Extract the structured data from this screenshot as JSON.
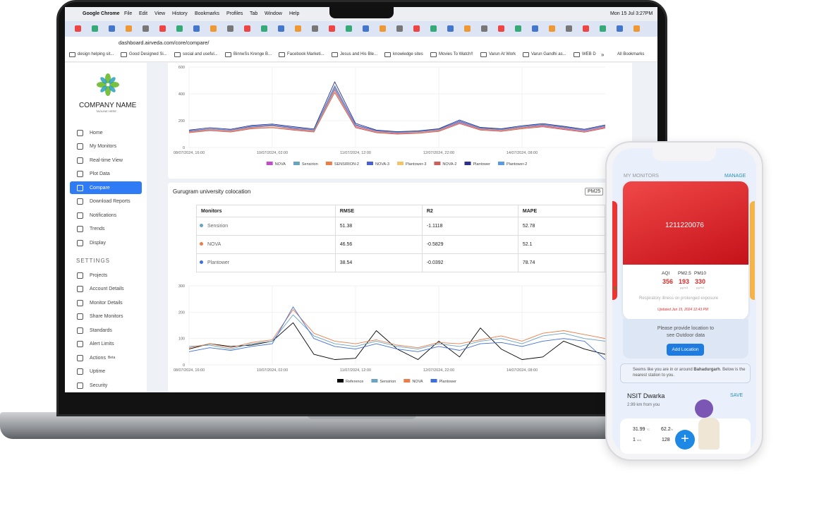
{
  "browser": {
    "app": "Google Chrome",
    "menu": [
      "File",
      "Edit",
      "View",
      "History",
      "Bookmarks",
      "Profiles",
      "Tab",
      "Window",
      "Help"
    ],
    "clock": "Mon 15 Jul 3:27PM",
    "url": "dashboard.airveda.com/core/compare/",
    "bookmarks": [
      "design helping sit...",
      "Good Designed Si...",
      "social and useful...",
      "BinneSs Krenge B...",
      "Facebook Marketi...",
      "Jesus and His Ble...",
      "knowledge sites",
      "Movies To Watch!!",
      "Varun At Work",
      "Varun Gandhi as...",
      "WEB D"
    ],
    "more": "»",
    "all_bookmarks": "All Bookmarks"
  },
  "sidebar": {
    "company": "COMPANY NAME",
    "tagline": "TAGLINE HERE",
    "nav": [
      "Home",
      "My Monitors",
      "Real-time View",
      "Plot Data",
      "Compare",
      "Download Reports",
      "Notifications",
      "Trends",
      "Display"
    ],
    "active": "Compare",
    "settings_title": "SETTINGS",
    "settings": [
      "Projects",
      "Account Details",
      "Monitor Details",
      "Share Monitors",
      "Standards",
      "Alert Limits",
      "Actions",
      "Uptime",
      "Security"
    ],
    "beta": "Beta"
  },
  "table": {
    "title": "Gurugram university colocation",
    "selector": "PM25",
    "headers": [
      "Monitors",
      "RMSE",
      "R2",
      "MAPE"
    ],
    "rows": [
      [
        "Sensirion",
        51.38,
        -1.1118,
        52.78
      ],
      [
        "NOVA",
        46.56,
        -0.5829,
        52.1
      ],
      [
        "Plantower",
        38.54,
        -0.0392,
        78.74
      ]
    ],
    "dot_colors": [
      "#6aa3c0",
      "#e97e4a",
      "#3f6fd9"
    ]
  },
  "chart_data": [
    {
      "type": "line",
      "x": [
        0,
        1,
        2,
        3,
        4,
        5,
        6,
        7,
        8,
        9,
        10,
        11,
        12,
        13,
        14,
        15,
        16,
        17,
        18,
        19,
        20
      ],
      "xlim": [
        0,
        20
      ],
      "xticks": [
        {
          "value": 0,
          "label": "08/07/2024, 16:00"
        },
        {
          "value": 4,
          "label": "10/07/2024, 02:00"
        },
        {
          "value": 8,
          "label": "11/07/2024, 12:00"
        },
        {
          "value": 12,
          "label": "12/07/2024, 22:00"
        },
        {
          "value": 16,
          "label": "14/07/2024, 08:00"
        }
      ],
      "ylim": [
        0,
        600
      ],
      "yticks": [
        0,
        200,
        400,
        600
      ],
      "grid": true,
      "series": [
        {
          "name": "NOVA",
          "color": "#c04ec9",
          "values": [
            115,
            130,
            120,
            145,
            150,
            135,
            120,
            430,
            155,
            115,
            105,
            110,
            125,
            185,
            135,
            125,
            145,
            160,
            140,
            120,
            150
          ]
        },
        {
          "name": "Sensirion",
          "color": "#6aa3c0",
          "values": [
            120,
            138,
            128,
            152,
            162,
            142,
            128,
            440,
            165,
            122,
            112,
            118,
            132,
            190,
            142,
            132,
            152,
            168,
            148,
            128,
            158
          ]
        },
        {
          "name": "SENSIRION-2",
          "color": "#e97e4a",
          "values": [
            118,
            136,
            126,
            150,
            160,
            140,
            126,
            450,
            162,
            120,
            110,
            116,
            130,
            192,
            140,
            130,
            150,
            166,
            146,
            126,
            156
          ]
        },
        {
          "name": "NOVA-3",
          "color": "#4a5fd1",
          "values": [
            125,
            140,
            130,
            158,
            168,
            148,
            132,
            460,
            170,
            126,
            115,
            120,
            136,
            198,
            146,
            136,
            156,
            172,
            152,
            130,
            162
          ]
        },
        {
          "name": "Plantower-3",
          "color": "#f2c46a",
          "values": [
            112,
            128,
            118,
            142,
            150,
            132,
            118,
            420,
            150,
            112,
            102,
            108,
            122,
            180,
            132,
            122,
            142,
            156,
            136,
            116,
            146
          ]
        },
        {
          "name": "NOVA-2",
          "color": "#c9605c",
          "values": [
            110,
            126,
            116,
            140,
            148,
            130,
            116,
            410,
            148,
            110,
            100,
            106,
            120,
            178,
            130,
            120,
            140,
            154,
            134,
            114,
            144
          ]
        },
        {
          "name": "Plantower",
          "color": "#2d2f8c",
          "values": [
            130,
            148,
            136,
            165,
            175,
            155,
            138,
            490,
            180,
            130,
            118,
            124,
            140,
            205,
            150,
            140,
            162,
            178,
            158,
            136,
            168
          ]
        },
        {
          "name": "Plantower-2",
          "color": "#5a9be0",
          "values": [
            122,
            140,
            130,
            154,
            164,
            144,
            130,
            455,
            166,
            124,
            113,
            119,
            134,
            194,
            144,
            134,
            154,
            170,
            150,
            128,
            160
          ]
        }
      ]
    },
    {
      "type": "line",
      "x": [
        0,
        1,
        2,
        3,
        4,
        5,
        6,
        7,
        8,
        9,
        10,
        11,
        12,
        13,
        14,
        15,
        16,
        17,
        18,
        19,
        20
      ],
      "xlim": [
        0,
        20
      ],
      "xticks": [
        {
          "value": 0,
          "label": "08/07/2024, 16:00"
        },
        {
          "value": 4,
          "label": "10/07/2024, 02:00"
        },
        {
          "value": 8,
          "label": "11/07/2024, 12:00"
        },
        {
          "value": 12,
          "label": "12/07/2024, 22:00"
        },
        {
          "value": 16,
          "label": "14/07/2024, 08:00"
        }
      ],
      "ylim": [
        0,
        300
      ],
      "yticks": [
        0,
        100,
        200,
        300
      ],
      "grid": true,
      "series": [
        {
          "name": "Reference",
          "color": "#000000",
          "values": [
            60,
            80,
            70,
            75,
            90,
            160,
            40,
            20,
            25,
            130,
            60,
            20,
            90,
            30,
            140,
            60,
            20,
            30,
            90,
            60,
            40
          ]
        },
        {
          "name": "Sensirion",
          "color": "#6aa3c0",
          "values": [
            70,
            75,
            60,
            80,
            90,
            190,
            110,
            80,
            70,
            90,
            70,
            60,
            80,
            70,
            90,
            100,
            80,
            110,
            120,
            100,
            90
          ]
        },
        {
          "name": "NOVA",
          "color": "#e97e4a",
          "values": [
            65,
            80,
            65,
            85,
            95,
            210,
            120,
            90,
            80,
            95,
            75,
            65,
            85,
            80,
            95,
            110,
            90,
            120,
            130,
            115,
            100
          ]
        },
        {
          "name": "Plantower",
          "color": "#3f6fd9",
          "values": [
            50,
            65,
            55,
            70,
            80,
            220,
            100,
            70,
            60,
            80,
            60,
            50,
            70,
            55,
            80,
            85,
            70,
            90,
            100,
            90,
            20
          ]
        }
      ]
    }
  ],
  "phone": {
    "section": "MY MONITORS",
    "manage": "MANAGE",
    "device_id": "1211220076",
    "peek": "6",
    "metrics": [
      {
        "name": "AQI",
        "value": 356
      },
      {
        "name": "PM2.5",
        "value": 193,
        "unit": "µg/m3"
      },
      {
        "name": "PM10",
        "value": 330,
        "unit": "µg/m3"
      }
    ],
    "health": "Respiratory illness on prolonged exposure",
    "updated": "Updated Jan 15, 2024 12:43 PM",
    "location_prompt": "Please provide location to see Outdoor data",
    "add_location": "Add Location",
    "location_note": [
      "Seems like you are in or around ",
      "Bahadurgarh",
      ". Below is the nearest station to you."
    ],
    "station": "NSIT Dwarka",
    "save": "SAVE",
    "distance": "2.99 km from you",
    "temp": 31.99,
    "temp_unit": "°C",
    "humidity": 62.2,
    "humidity_unit": "%",
    "wind": 1,
    "wind_unit": "m/s",
    "aqi": 128
  }
}
